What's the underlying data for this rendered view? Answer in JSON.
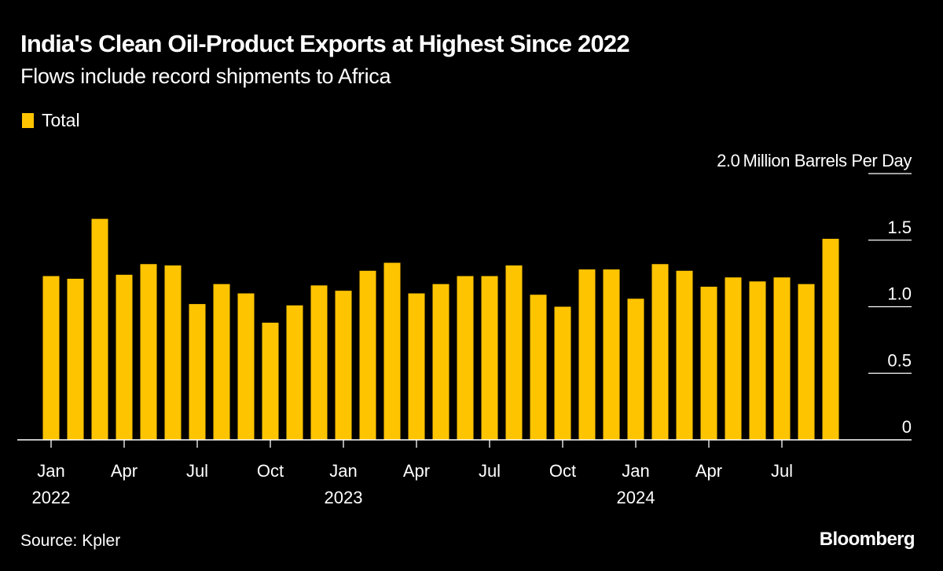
{
  "chart_data": {
    "type": "bar",
    "title": "India's Clean Oil-Product Exports at Highest Since 2022",
    "subtitle": "Flows include record shipments to Africa",
    "legend": [
      {
        "name": "Total",
        "color": "#FFC400"
      }
    ],
    "legend_position": "top-left",
    "ylabel": "Million Barrels Per Day",
    "ylim": [
      0,
      2.0
    ],
    "yticks": [
      "0",
      "0.5",
      "1.0",
      "1.5",
      "2.0"
    ],
    "y_axis_side": "right",
    "grid": false,
    "categories": [
      "2022-01",
      "2022-02",
      "2022-03",
      "2022-04",
      "2022-05",
      "2022-06",
      "2022-07",
      "2022-08",
      "2022-09",
      "2022-10",
      "2022-11",
      "2022-12",
      "2023-01",
      "2023-02",
      "2023-03",
      "2023-04",
      "2023-05",
      "2023-06",
      "2023-07",
      "2023-08",
      "2023-09",
      "2023-10",
      "2023-11",
      "2023-12",
      "2024-01",
      "2024-02",
      "2024-03",
      "2024-04",
      "2024-05",
      "2024-06",
      "2024-07",
      "2024-08",
      "2024-09"
    ],
    "series": [
      {
        "name": "Total",
        "values": [
          1.23,
          1.21,
          1.66,
          1.24,
          1.32,
          1.31,
          1.02,
          1.17,
          1.1,
          0.88,
          1.01,
          1.16,
          1.12,
          1.27,
          1.33,
          1.1,
          1.17,
          1.23,
          1.23,
          1.31,
          1.09,
          1.0,
          1.28,
          1.28,
          1.06,
          1.32,
          1.27,
          1.15,
          1.22,
          1.19,
          1.22,
          1.17,
          1.51
        ]
      }
    ],
    "xticks": [
      {
        "category": "2022-01",
        "label": "Jan",
        "year": "2022"
      },
      {
        "category": "2022-04",
        "label": "Apr"
      },
      {
        "category": "2022-07",
        "label": "Jul"
      },
      {
        "category": "2022-10",
        "label": "Oct"
      },
      {
        "category": "2023-01",
        "label": "Jan",
        "year": "2023"
      },
      {
        "category": "2023-04",
        "label": "Apr"
      },
      {
        "category": "2023-07",
        "label": "Jul"
      },
      {
        "category": "2023-10",
        "label": "Oct"
      },
      {
        "category": "2024-01",
        "label": "Jan",
        "year": "2024"
      },
      {
        "category": "2024-04",
        "label": "Apr"
      },
      {
        "category": "2024-07",
        "label": "Jul"
      }
    ],
    "bar_color": "#FFC400"
  },
  "footer": {
    "source": "Source: Kpler",
    "logo": "Bloomberg"
  }
}
